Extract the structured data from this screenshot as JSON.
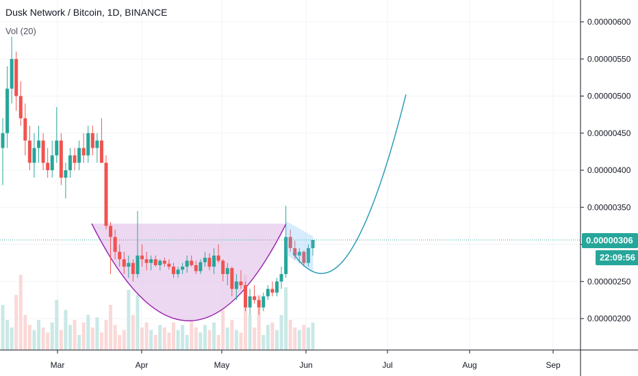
{
  "header": {
    "title": "Dusk Network / Bitcoin, 1D, BINANCE",
    "indicator": "Vol (20)"
  },
  "price_badge": "0.00000306",
  "time_badge": "22:09:56",
  "colors": {
    "up": "#26a69a",
    "down": "#ef5350",
    "cup_fill": "#e1bee7",
    "cup_stroke": "#9c27b0",
    "projection": "#2196f3",
    "flag": "#64b5f6"
  },
  "chart_data": {
    "type": "candlestick",
    "y_ticks": [
      2e-06,
      2.5e-06,
      3e-06,
      3.5e-06,
      4e-06,
      4.5e-06,
      5e-06,
      5.5e-06,
      6e-06
    ],
    "y_tick_labels": [
      "0.00000200",
      "0.00000250",
      "0.00000300",
      "0.00000350",
      "0.00000400",
      "0.00000450",
      "0.00000500",
      "0.00000550",
      "0.00000600"
    ],
    "x_labels": [
      "Mar",
      "Apr",
      "May",
      "Jun",
      "Jul",
      "Aug",
      "Sep"
    ],
    "last_price": 3.06e-06,
    "candles": [
      {
        "o": 4.3,
        "h": 4.7,
        "l": 3.8,
        "c": 4.5
      },
      {
        "o": 4.5,
        "h": 5.4,
        "l": 4.3,
        "c": 5.1
      },
      {
        "o": 5.1,
        "h": 5.8,
        "l": 4.9,
        "c": 5.5
      },
      {
        "o": 5.5,
        "h": 5.6,
        "l": 4.8,
        "c": 5.0
      },
      {
        "o": 5.0,
        "h": 5.2,
        "l": 4.6,
        "c": 4.7
      },
      {
        "o": 4.7,
        "h": 4.9,
        "l": 4.2,
        "c": 4.4
      },
      {
        "o": 4.4,
        "h": 4.6,
        "l": 4.0,
        "c": 4.1
      },
      {
        "o": 4.1,
        "h": 4.5,
        "l": 3.9,
        "c": 4.3
      },
      {
        "o": 4.3,
        "h": 4.6,
        "l": 4.1,
        "c": 4.4
      },
      {
        "o": 4.4,
        "h": 4.5,
        "l": 4.0,
        "c": 4.1
      },
      {
        "o": 4.1,
        "h": 4.3,
        "l": 3.9,
        "c": 4.0
      },
      {
        "o": 4.0,
        "h": 4.4,
        "l": 3.9,
        "c": 4.2
      },
      {
        "o": 4.2,
        "h": 4.85,
        "l": 4.1,
        "c": 4.4
      },
      {
        "o": 4.4,
        "h": 4.5,
        "l": 3.8,
        "c": 3.9
      },
      {
        "o": 3.9,
        "h": 4.1,
        "l": 3.62,
        "c": 4.0
      },
      {
        "o": 4.0,
        "h": 4.3,
        "l": 3.9,
        "c": 4.2
      },
      {
        "o": 4.2,
        "h": 4.3,
        "l": 4.0,
        "c": 4.1
      },
      {
        "o": 4.1,
        "h": 4.4,
        "l": 4.0,
        "c": 4.3
      },
      {
        "o": 4.3,
        "h": 4.5,
        "l": 4.1,
        "c": 4.2
      },
      {
        "o": 4.2,
        "h": 4.6,
        "l": 4.1,
        "c": 4.5
      },
      {
        "o": 4.5,
        "h": 4.6,
        "l": 4.2,
        "c": 4.3
      },
      {
        "o": 4.3,
        "h": 4.5,
        "l": 4.1,
        "c": 4.4
      },
      {
        "o": 4.4,
        "h": 4.7,
        "l": 4.1,
        "c": 4.1
      },
      {
        "o": 4.1,
        "h": 4.2,
        "l": 3.2,
        "c": 3.25
      },
      {
        "o": 3.25,
        "h": 3.3,
        "l": 2.6,
        "c": 3.1
      },
      {
        "o": 3.1,
        "h": 3.2,
        "l": 2.8,
        "c": 2.9
      },
      {
        "o": 2.9,
        "h": 3.0,
        "l": 2.7,
        "c": 2.8
      },
      {
        "o": 2.8,
        "h": 2.9,
        "l": 2.6,
        "c": 2.7
      },
      {
        "o": 2.7,
        "h": 2.85,
        "l": 2.55,
        "c": 2.75
      },
      {
        "o": 2.75,
        "h": 2.8,
        "l": 2.5,
        "c": 2.6
      },
      {
        "o": 2.6,
        "h": 3.45,
        "l": 2.55,
        "c": 2.85
      },
      {
        "o": 2.85,
        "h": 3.0,
        "l": 2.7,
        "c": 2.8
      },
      {
        "o": 2.8,
        "h": 2.9,
        "l": 2.65,
        "c": 2.75
      },
      {
        "o": 2.75,
        "h": 2.85,
        "l": 2.65,
        "c": 2.8
      },
      {
        "o": 2.8,
        "h": 2.85,
        "l": 2.7,
        "c": 2.72
      },
      {
        "o": 2.72,
        "h": 2.8,
        "l": 2.65,
        "c": 2.78
      },
      {
        "o": 2.78,
        "h": 2.82,
        "l": 2.7,
        "c": 2.74
      },
      {
        "o": 2.74,
        "h": 2.8,
        "l": 2.66,
        "c": 2.7
      },
      {
        "o": 2.7,
        "h": 2.75,
        "l": 2.55,
        "c": 2.6
      },
      {
        "o": 2.6,
        "h": 2.7,
        "l": 2.55,
        "c": 2.66
      },
      {
        "o": 2.66,
        "h": 2.75,
        "l": 2.6,
        "c": 2.7
      },
      {
        "o": 2.7,
        "h": 2.85,
        "l": 2.62,
        "c": 2.78
      },
      {
        "o": 2.78,
        "h": 2.85,
        "l": 2.7,
        "c": 2.72
      },
      {
        "o": 2.72,
        "h": 2.78,
        "l": 2.6,
        "c": 2.64
      },
      {
        "o": 2.64,
        "h": 2.8,
        "l": 2.6,
        "c": 2.76
      },
      {
        "o": 2.76,
        "h": 2.9,
        "l": 2.7,
        "c": 2.82
      },
      {
        "o": 2.82,
        "h": 2.88,
        "l": 2.65,
        "c": 2.7
      },
      {
        "o": 2.7,
        "h": 2.95,
        "l": 2.6,
        "c": 2.85
      },
      {
        "o": 2.85,
        "h": 3.0,
        "l": 2.75,
        "c": 2.78
      },
      {
        "o": 2.78,
        "h": 2.8,
        "l": 2.5,
        "c": 2.6
      },
      {
        "o": 2.6,
        "h": 2.75,
        "l": 2.45,
        "c": 2.68
      },
      {
        "o": 2.68,
        "h": 2.7,
        "l": 2.3,
        "c": 2.4
      },
      {
        "o": 2.4,
        "h": 2.6,
        "l": 2.25,
        "c": 2.5
      },
      {
        "o": 2.5,
        "h": 2.65,
        "l": 2.4,
        "c": 2.45
      },
      {
        "o": 2.45,
        "h": 2.5,
        "l": 2.1,
        "c": 2.15
      },
      {
        "o": 2.15,
        "h": 2.4,
        "l": 2.05,
        "c": 2.3
      },
      {
        "o": 2.3,
        "h": 2.45,
        "l": 2.2,
        "c": 2.25
      },
      {
        "o": 2.25,
        "h": 2.3,
        "l": 2.05,
        "c": 2.15
      },
      {
        "o": 2.15,
        "h": 2.35,
        "l": 2.1,
        "c": 2.3
      },
      {
        "o": 2.3,
        "h": 2.45,
        "l": 2.25,
        "c": 2.4
      },
      {
        "o": 2.4,
        "h": 2.5,
        "l": 2.3,
        "c": 2.35
      },
      {
        "o": 2.35,
        "h": 2.55,
        "l": 2.3,
        "c": 2.5
      },
      {
        "o": 2.5,
        "h": 2.7,
        "l": 2.4,
        "c": 2.6
      },
      {
        "o": 2.6,
        "h": 3.52,
        "l": 2.55,
        "c": 3.1
      },
      {
        "o": 3.1,
        "h": 3.2,
        "l": 2.9,
        "c": 2.95
      },
      {
        "o": 2.95,
        "h": 3.05,
        "l": 2.8,
        "c": 2.85
      },
      {
        "o": 2.85,
        "h": 2.95,
        "l": 2.75,
        "c": 2.9
      },
      {
        "o": 2.9,
        "h": 2.92,
        "l": 2.7,
        "c": 2.75
      },
      {
        "o": 2.75,
        "h": 3.0,
        "l": 2.7,
        "c": 2.95
      },
      {
        "o": 2.95,
        "h": 3.06,
        "l": 2.85,
        "c": 3.06
      }
    ],
    "volumes": [
      18,
      12,
      9,
      22,
      30,
      14,
      10,
      8,
      12,
      9,
      7,
      11,
      20,
      8,
      16,
      10,
      12,
      6,
      11,
      14,
      9,
      13,
      7,
      12,
      18,
      10,
      6,
      8,
      24,
      14,
      22,
      9,
      11,
      8,
      6,
      10,
      9,
      7,
      11,
      8,
      10,
      6,
      12,
      9,
      7,
      10,
      8,
      11,
      6,
      16,
      9,
      12,
      8,
      7,
      30,
      14,
      9,
      22,
      6,
      10,
      11,
      8,
      14,
      25,
      12,
      9,
      8,
      10,
      9,
      11
    ],
    "annotations": {
      "cup": {
        "x1": 3.2e-06,
        "level": 3.28e-06,
        "bottom": 1.97e-06
      },
      "flag_channel": true,
      "projection_target": 5.02e-06
    }
  }
}
